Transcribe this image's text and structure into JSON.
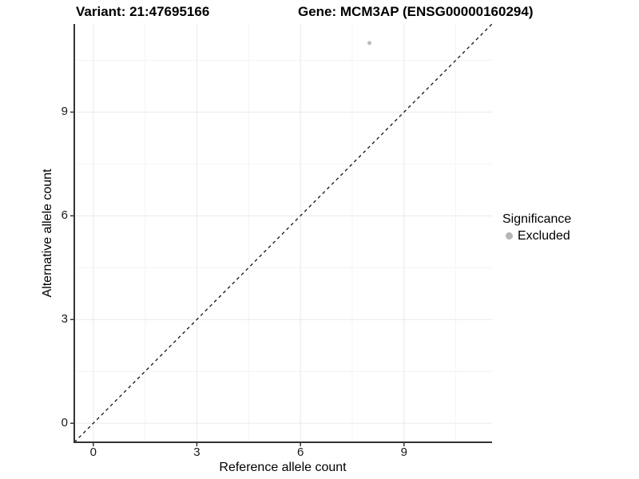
{
  "chart_data": {
    "type": "scatter",
    "title_left": "Variant: 21:47695166",
    "title_right": "Gene: MCM3AP (ENSG00000160294)",
    "xlabel": "Reference allele count",
    "ylabel": "Alternative allele count",
    "xlim": [
      -0.55,
      11.55
    ],
    "ylim": [
      -0.55,
      11.55
    ],
    "x_ticks": [
      0,
      3,
      6,
      9
    ],
    "y_ticks": [
      0,
      3,
      6,
      9
    ],
    "x_minor_ticks": [
      1.5,
      4.5,
      7.5,
      10.5
    ],
    "y_minor_ticks": [
      1.5,
      4.5,
      7.5,
      10.5
    ],
    "grid": true,
    "points": [
      {
        "x": 8,
        "y": 11,
        "significance": "Excluded",
        "color": "#bdbdbd"
      }
    ],
    "identity_line": {
      "style": "dashed",
      "color": "#000000",
      "slope": 1,
      "intercept": 0
    },
    "legend": {
      "position": "right",
      "title": "Significance",
      "entries": [
        {
          "label": "Excluded",
          "color": "#b5b5b5"
        }
      ]
    },
    "colors": {
      "axis_line": "#333333",
      "grid_major": "#e9e9e9",
      "grid_minor": "#f4f4f4",
      "tick_text": "#1a1a1a"
    }
  }
}
